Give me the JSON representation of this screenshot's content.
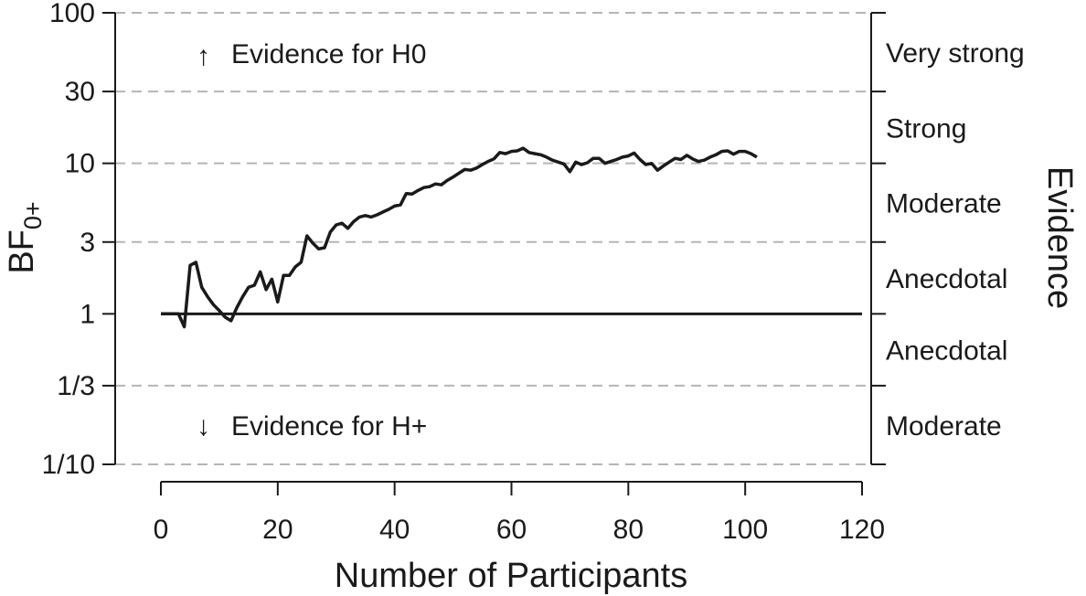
{
  "chart_data": {
    "type": "line",
    "xlabel": "Number of Participants",
    "ylabel_main": "BF",
    "ylabel_sub": "0+",
    "right_axis_label": "Evidence",
    "y_scale": "log",
    "xlim": [
      0,
      120
    ],
    "ylim": [
      0.1,
      100
    ],
    "x_ticks": [
      0,
      20,
      40,
      60,
      80,
      100,
      120
    ],
    "x_tick_labels": [
      "0",
      "20",
      "40",
      "60",
      "80",
      "100",
      "120"
    ],
    "y_ticks": [
      0.1,
      0.3333,
      1,
      3,
      10,
      30,
      100
    ],
    "y_tick_labels": [
      "1/10",
      "1/3",
      "1",
      "3",
      "10",
      "30",
      "100"
    ],
    "gridlines_dashed_at": [
      0.1,
      0.3333,
      3,
      10,
      30,
      100
    ],
    "reference_line_at": 1,
    "evidence_categories": [
      {
        "label": "Very strong",
        "range": [
          30,
          100
        ]
      },
      {
        "label": "Strong",
        "range": [
          10,
          30
        ]
      },
      {
        "label": "Moderate",
        "range": [
          3,
          10
        ]
      },
      {
        "label": "Anecdotal",
        "range": [
          1,
          3
        ]
      },
      {
        "label": "Anecdotal",
        "range": [
          0.3333,
          1
        ]
      },
      {
        "label": "Moderate",
        "range": [
          0.1,
          0.3333
        ]
      }
    ],
    "annotations": {
      "up": {
        "arrow": "↑",
        "text": "Evidence for H0"
      },
      "down": {
        "arrow": "↓",
        "text": "Evidence for H+"
      }
    },
    "series": [
      {
        "x": [
          0,
          1,
          2,
          3,
          4,
          5,
          6,
          7,
          8,
          9,
          10,
          11,
          12,
          13,
          14,
          15,
          16,
          17,
          18,
          19,
          20,
          21,
          22,
          23,
          24,
          25,
          26,
          27,
          28,
          29,
          30,
          31,
          32,
          33,
          34,
          35,
          36,
          37,
          38,
          39,
          40,
          41,
          42,
          43,
          44,
          45,
          46,
          47,
          48,
          49,
          50,
          51,
          52,
          53,
          54,
          55,
          56,
          57,
          58,
          59,
          60,
          61,
          62,
          63,
          64,
          65,
          66,
          67,
          68,
          69,
          70,
          71,
          72,
          73,
          74,
          75,
          76,
          77,
          78,
          79,
          80,
          81,
          82,
          83,
          84,
          85,
          86,
          87,
          88,
          89,
          90,
          91,
          92,
          93,
          94,
          95,
          96,
          97,
          98,
          99,
          100,
          101,
          102
        ],
        "y": [
          1.0,
          1.0,
          1.0,
          1.0,
          0.82,
          2.1,
          2.2,
          1.5,
          1.3,
          1.15,
          1.05,
          0.95,
          0.9,
          1.1,
          1.3,
          1.5,
          1.55,
          1.9,
          1.45,
          1.7,
          1.2,
          1.8,
          1.8,
          2.05,
          2.2,
          3.3,
          2.95,
          2.7,
          2.75,
          3.5,
          3.9,
          4.0,
          3.7,
          4.1,
          4.4,
          4.5,
          4.4,
          4.55,
          4.75,
          4.95,
          5.2,
          5.3,
          6.3,
          6.25,
          6.6,
          6.9,
          7.0,
          7.3,
          7.2,
          7.7,
          8.1,
          8.6,
          9.1,
          9.0,
          9.3,
          9.8,
          10.3,
          10.7,
          11.8,
          11.6,
          12.0,
          12.1,
          12.6,
          11.8,
          11.6,
          11.4,
          11.0,
          10.5,
          10.2,
          9.9,
          8.8,
          10.2,
          9.8,
          10.1,
          10.8,
          10.8,
          10.0,
          10.3,
          10.6,
          11.0,
          11.2,
          11.7,
          10.6,
          9.8,
          10.0,
          9.0,
          9.6,
          10.2,
          10.8,
          10.6,
          11.3,
          10.7,
          10.3,
          10.5,
          11.0,
          11.4,
          12.0,
          12.1,
          11.5,
          12.0,
          12.0,
          11.6,
          11.0
        ]
      }
    ]
  }
}
